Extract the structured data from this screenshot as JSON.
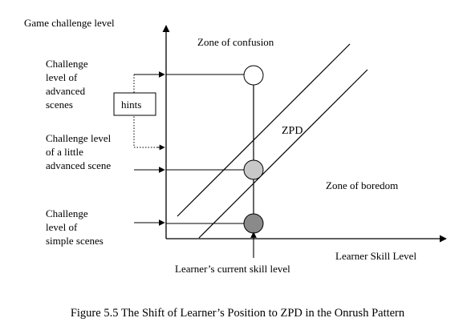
{
  "y_axis_label": "Game challenge level",
  "x_axis_label": "Learner Skill Level",
  "zone_confusion": "Zone of confusion",
  "zone_boredom": "Zone of boredom",
  "zpd_label": "ZPD",
  "hints_label": "hints",
  "skill_label": "Learner’s current skill level",
  "advanced": {
    "l1": "Challenge",
    "l2": "level of",
    "l3": "advanced",
    "l4": "scenes"
  },
  "little": {
    "l1": "Challenge level",
    "l2": "of a little",
    "l3": "advanced scene"
  },
  "simple": {
    "l1": "Challenge",
    "l2": "level of",
    "l3": "simple scenes"
  },
  "caption": "Figure 5.5 The Shift of Learner’s Position to ZPD in the Onrush Pattern",
  "colors": {
    "circle_top": "#ffffff",
    "circle_mid": "#c8c8c8",
    "circle_low": "#8a8a8a"
  }
}
